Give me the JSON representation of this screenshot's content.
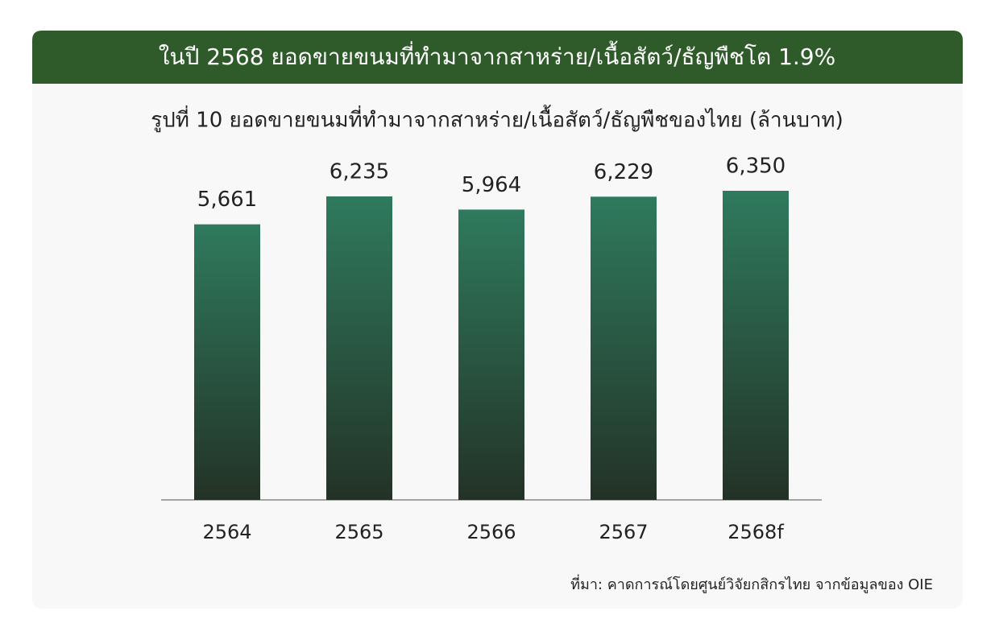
{
  "chart_data": {
    "type": "bar",
    "title": "ในปี 2568 ยอดขายขนมที่ทำมาจากสาหร่าย/เนื้อสัตว์/ธัญพืชโต 1.9%",
    "subtitle": "รูปที่ 10 ยอดขายขนมที่ทำมาจากสาหร่าย/เนื้อสัตว์/ธัญพืชของไทย (ล้านบาท)",
    "categories": [
      "2564",
      "2565",
      "2566",
      "2567",
      "2568f"
    ],
    "values": [
      5661,
      6235,
      5964,
      6229,
      6350
    ],
    "value_labels": [
      "5,661",
      "6,235",
      "5,964",
      "6,229",
      "6,350"
    ],
    "color": "#2f7a5e",
    "source": "ที่มา: คาดการณ์โดยศูนย์วิจัยกสิกรไทย จากข้อมูลของ OIE"
  }
}
